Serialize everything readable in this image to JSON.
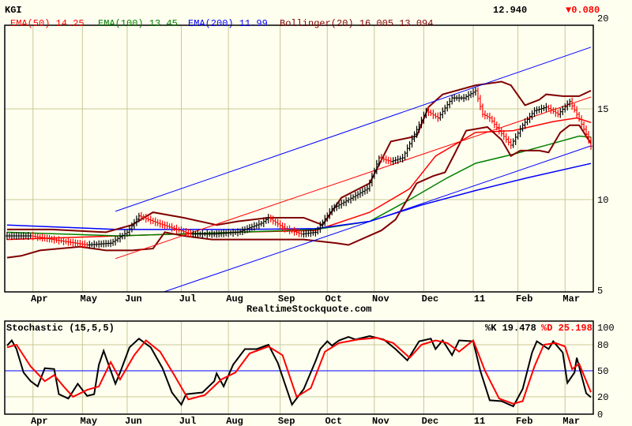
{
  "header": {
    "symbol": "KGI",
    "last": "12.940",
    "change": "▼0.080"
  },
  "legend": {
    "ema50": "EMA(50) 14.25",
    "ema100": "EMA(100) 13.45",
    "ema200": "EMA(200) 11.99",
    "bollinger": "Bollinger(20) 16.005 13.094"
  },
  "watermark": "RealtimeStockquote.com",
  "colors": {
    "background": "#fffff0",
    "grid": "#c8c896",
    "ema50": "#ff0000",
    "ema100": "#008000",
    "ema200": "#0000ff",
    "bollinger": "#800000",
    "up": "#000000",
    "down": "#ff0000"
  },
  "chart_data": [
    {
      "type": "line",
      "title": "KGI",
      "xlabel": "",
      "ylabel": "",
      "xlim": [
        0,
        250
      ],
      "ylim": [
        5,
        20
      ],
      "y_ticks": [
        5,
        10,
        15,
        20
      ],
      "x_ticks": [
        {
          "day": 12,
          "label": "Apr"
        },
        {
          "day": 33,
          "label": "May"
        },
        {
          "day": 52,
          "label": "Jun"
        },
        {
          "day": 75,
          "label": "Jul"
        },
        {
          "day": 95,
          "label": "Aug"
        },
        {
          "day": 117,
          "label": "Sep"
        },
        {
          "day": 137,
          "label": "Oct"
        },
        {
          "day": 157,
          "label": "Nov"
        },
        {
          "day": 178,
          "label": "Dec"
        },
        {
          "day": 199,
          "label": "11"
        },
        {
          "day": 218,
          "label": "Feb"
        },
        {
          "day": 238,
          "label": "Mar"
        }
      ],
      "grid": true,
      "series": [
        {
          "name": "Price",
          "points": [
            [
              1,
              8.0
            ],
            [
              11,
              8.0
            ],
            [
              25,
              7.7
            ],
            [
              35,
              7.5
            ],
            [
              45,
              7.6
            ],
            [
              52,
              8.2
            ],
            [
              57,
              9.1
            ],
            [
              65,
              8.7
            ],
            [
              72,
              8.4
            ],
            [
              79,
              8.1
            ],
            [
              89,
              8.1
            ],
            [
              99,
              8.2
            ],
            [
              109,
              8.7
            ],
            [
              112,
              9.0
            ],
            [
              119,
              8.4
            ],
            [
              126,
              8.1
            ],
            [
              132,
              8.2
            ],
            [
              139,
              9.5
            ],
            [
              146,
              10.0
            ],
            [
              154,
              10.6
            ],
            [
              159,
              12.3
            ],
            [
              164,
              12.1
            ],
            [
              169,
              12.3
            ],
            [
              174,
              13.6
            ],
            [
              179,
              14.9
            ],
            [
              184,
              14.5
            ],
            [
              190,
              15.6
            ],
            [
              195,
              15.6
            ],
            [
              200,
              16.0
            ],
            [
              203,
              14.7
            ],
            [
              206,
              14.5
            ],
            [
              210,
              13.8
            ],
            [
              215,
              13.0
            ],
            [
              220,
              14.1
            ],
            [
              225,
              14.9
            ],
            [
              230,
              15.1
            ],
            [
              235,
              14.7
            ],
            [
              240,
              15.4
            ],
            [
              243,
              14.7
            ],
            [
              247,
              13.6
            ],
            [
              249,
              12.94
            ]
          ]
        },
        {
          "name": "EMA(50)",
          "points": [
            [
              1,
              7.8
            ],
            [
              48,
              8.0
            ],
            [
              99,
              8.2
            ],
            [
              132,
              8.3
            ],
            [
              155,
              9.3
            ],
            [
              172,
              10.6
            ],
            [
              183,
              12.4
            ],
            [
              200,
              13.7
            ],
            [
              216,
              13.8
            ],
            [
              233,
              14.3
            ],
            [
              243,
              14.5
            ],
            [
              249,
              14.25
            ]
          ]
        },
        {
          "name": "EMA(100)",
          "points": [
            [
              1,
              8.2
            ],
            [
              48,
              8.0
            ],
            [
              99,
              8.2
            ],
            [
              132,
              8.35
            ],
            [
              155,
              8.8
            ],
            [
              172,
              10.0
            ],
            [
              188,
              11.2
            ],
            [
              200,
              12.0
            ],
            [
              216,
              12.5
            ],
            [
              233,
              13.1
            ],
            [
              244,
              13.5
            ],
            [
              249,
              13.45
            ]
          ]
        },
        {
          "name": "EMA(200)",
          "points": [
            [
              1,
              8.6
            ],
            [
              48,
              8.35
            ],
            [
              99,
              8.35
            ],
            [
              132,
              8.4
            ],
            [
              155,
              8.8
            ],
            [
              177,
              9.7
            ],
            [
              200,
              10.5
            ],
            [
              222,
              11.2
            ],
            [
              249,
              11.99
            ]
          ]
        },
        {
          "name": "Bollinger upper",
          "points": [
            [
              1,
              8.35
            ],
            [
              20,
              8.35
            ],
            [
              43,
              8.2
            ],
            [
              54,
              8.6
            ],
            [
              63,
              9.3
            ],
            [
              76,
              9.0
            ],
            [
              90,
              8.6
            ],
            [
              99,
              8.8
            ],
            [
              112,
              9.0
            ],
            [
              127,
              9.0
            ],
            [
              135,
              8.6
            ],
            [
              143,
              10.1
            ],
            [
              155,
              10.9
            ],
            [
              164,
              13.2
            ],
            [
              175,
              13.5
            ],
            [
              180,
              15.1
            ],
            [
              186,
              15.8
            ],
            [
              200,
              16.3
            ],
            [
              211,
              16.5
            ],
            [
              215,
              16.3
            ],
            [
              221,
              15.2
            ],
            [
              227,
              15.5
            ],
            [
              230,
              15.8
            ],
            [
              237,
              15.7
            ],
            [
              244,
              15.7
            ],
            [
              249,
              16.005
            ]
          ]
        },
        {
          "name": "Bollinger lower",
          "points": [
            [
              1,
              6.8
            ],
            [
              7,
              6.9
            ],
            [
              15,
              7.2
            ],
            [
              32,
              7.4
            ],
            [
              43,
              7.2
            ],
            [
              54,
              7.2
            ],
            [
              63,
              7.3
            ],
            [
              68,
              8.2
            ],
            [
              76,
              8.0
            ],
            [
              88,
              7.8
            ],
            [
              110,
              7.8
            ],
            [
              127,
              7.8
            ],
            [
              141,
              7.6
            ],
            [
              146,
              7.5
            ],
            [
              160,
              8.3
            ],
            [
              166,
              8.9
            ],
            [
              175,
              10.9
            ],
            [
              182,
              11.3
            ],
            [
              187,
              11.5
            ],
            [
              191,
              12.5
            ],
            [
              196,
              13.8
            ],
            [
              205,
              14.0
            ],
            [
              211,
              13.3
            ],
            [
              215,
              12.4
            ],
            [
              219,
              12.7
            ],
            [
              227,
              12.7
            ],
            [
              231,
              12.6
            ],
            [
              236,
              13.7
            ],
            [
              240,
              14.1
            ],
            [
              244,
              14.1
            ],
            [
              249,
              13.094
            ]
          ]
        },
        {
          "name": "Channel upper",
          "points": [
            [
              47,
              9.35
            ],
            [
              249,
              18.4
            ]
          ]
        },
        {
          "name": "Channel middle",
          "points": [
            [
              47,
              6.75
            ],
            [
              249,
              15.65
            ]
          ]
        },
        {
          "name": "Channel lower",
          "points": [
            [
              47,
              4.0
            ],
            [
              249,
              12.96
            ]
          ]
        }
      ]
    },
    {
      "type": "line",
      "title": "Stochastic (15,5,5)",
      "xlim": [
        0,
        250
      ],
      "ylim": [
        0,
        100
      ],
      "y_ticks": [
        0,
        20,
        50,
        80,
        100
      ],
      "reference_line": 50,
      "readout": {
        "k": "%K 19.478",
        "d": "%D 25.198"
      },
      "series": [
        {
          "name": "%K",
          "points": [
            [
              1,
              79
            ],
            [
              3,
              85
            ],
            [
              5,
              75
            ],
            [
              8,
              48
            ],
            [
              11,
              38
            ],
            [
              14,
              32
            ],
            [
              17,
              53
            ],
            [
              21,
              52
            ],
            [
              23,
              23
            ],
            [
              27,
              18
            ],
            [
              31,
              35
            ],
            [
              35,
              21
            ],
            [
              38,
              23
            ],
            [
              40,
              57
            ],
            [
              42,
              73
            ],
            [
              47,
              35
            ],
            [
              49,
              48
            ],
            [
              53,
              77
            ],
            [
              57,
              87
            ],
            [
              62,
              77
            ],
            [
              67,
              53
            ],
            [
              71,
              25
            ],
            [
              75,
              11
            ],
            [
              77,
              23
            ],
            [
              84,
              25
            ],
            [
              89,
              38
            ],
            [
              90,
              47
            ],
            [
              93,
              32
            ],
            [
              97,
              57
            ],
            [
              102,
              75
            ],
            [
              107,
              75
            ],
            [
              112,
              80
            ],
            [
              116,
              59
            ],
            [
              122,
              11
            ],
            [
              127,
              29
            ],
            [
              132,
              61
            ],
            [
              134,
              75
            ],
            [
              137,
              84
            ],
            [
              139,
              79
            ],
            [
              142,
              85
            ],
            [
              146,
              89
            ],
            [
              149,
              86
            ],
            [
              155,
              90
            ],
            [
              161,
              86
            ],
            [
              166,
              75
            ],
            [
              171,
              62
            ],
            [
              176,
              84
            ],
            [
              181,
              87
            ],
            [
              183,
              75
            ],
            [
              186,
              85
            ],
            [
              190,
              68
            ],
            [
              193,
              85
            ],
            [
              199,
              84
            ],
            [
              202,
              50
            ],
            [
              206,
              16
            ],
            [
              211,
              15
            ],
            [
              216,
              9
            ],
            [
              220,
              29
            ],
            [
              224,
              71
            ],
            [
              226,
              84
            ],
            [
              231,
              75
            ],
            [
              233,
              84
            ],
            [
              237,
              71
            ],
            [
              239,
              36
            ],
            [
              242,
              48
            ],
            [
              243,
              65
            ],
            [
              247,
              24
            ],
            [
              249,
              19.478
            ]
          ]
        },
        {
          "name": "%D",
          "points": [
            [
              1,
              77
            ],
            [
              5,
              80
            ],
            [
              11,
              55
            ],
            [
              17,
              38
            ],
            [
              21,
              45
            ],
            [
              25,
              32
            ],
            [
              29,
              20
            ],
            [
              35,
              28
            ],
            [
              40,
              32
            ],
            [
              45,
              60
            ],
            [
              49,
              40
            ],
            [
              55,
              68
            ],
            [
              60,
              85
            ],
            [
              66,
              72
            ],
            [
              72,
              45
            ],
            [
              78,
              17
            ],
            [
              85,
              22
            ],
            [
              92,
              40
            ],
            [
              98,
              48
            ],
            [
              104,
              70
            ],
            [
              112,
              78
            ],
            [
              118,
              68
            ],
            [
              124,
              20
            ],
            [
              130,
              30
            ],
            [
              136,
              72
            ],
            [
              142,
              82
            ],
            [
              150,
              86
            ],
            [
              158,
              88
            ],
            [
              165,
              82
            ],
            [
              172,
              65
            ],
            [
              177,
              80
            ],
            [
              183,
              85
            ],
            [
              188,
              82
            ],
            [
              193,
              72
            ],
            [
              199,
              85
            ],
            [
              204,
              50
            ],
            [
              210,
              18
            ],
            [
              216,
              12
            ],
            [
              220,
              15
            ],
            [
              225,
              55
            ],
            [
              229,
              80
            ],
            [
              234,
              82
            ],
            [
              238,
              78
            ],
            [
              241,
              52
            ],
            [
              244,
              58
            ],
            [
              249,
              25.198
            ]
          ]
        }
      ]
    }
  ]
}
